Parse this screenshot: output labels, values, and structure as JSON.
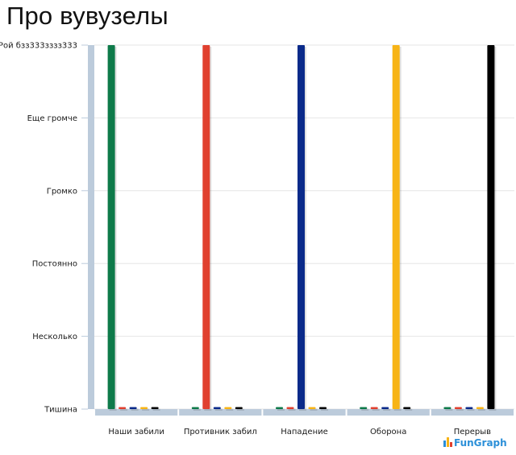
{
  "chart_data": {
    "type": "bar",
    "title": "Про вувузелы",
    "xlabel": "",
    "ylabel": "",
    "y_levels": [
      "Тишина",
      "Несколько",
      "Постоянно",
      "Громко",
      "Еще громче",
      "Рой бзз333зззз333"
    ],
    "ylim": [
      0,
      5
    ],
    "categories": [
      "Наши забили",
      "Противник забил",
      "Нападение",
      "Оборона",
      "Перерыв"
    ],
    "series": [
      {
        "color": "#0e7a4a",
        "values": [
          5,
          0,
          0,
          0,
          0
        ]
      },
      {
        "color": "#e0402f",
        "values": [
          0,
          5,
          0,
          0,
          0
        ]
      },
      {
        "color": "#0a2a8a",
        "values": [
          0,
          0,
          5,
          0,
          0
        ]
      },
      {
        "color": "#f7b416",
        "values": [
          0,
          0,
          0,
          5,
          0
        ]
      },
      {
        "color": "#000000",
        "values": [
          0,
          0,
          0,
          0,
          5
        ]
      }
    ],
    "grid": true,
    "legend": "none"
  },
  "branding": {
    "logo_text": "FunGraph"
  }
}
